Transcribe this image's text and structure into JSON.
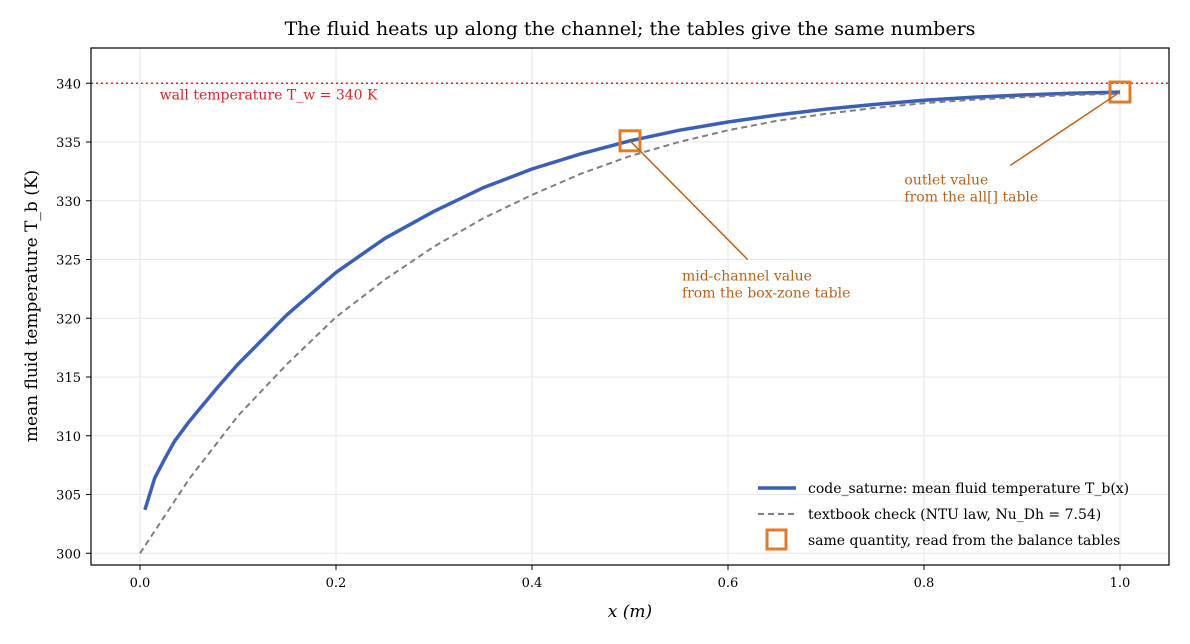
{
  "chart_data": {
    "type": "line",
    "title": "The fluid heats up along the channel; the tables give the same numbers",
    "xlabel": "x (m)",
    "ylabel": "mean fluid temperature T_b (K)",
    "xlim": [
      -0.05,
      1.05
    ],
    "ylim": [
      299,
      343
    ],
    "grid": true,
    "legend_position": "lower-right",
    "x_ticks": [
      0.0,
      0.2,
      0.4,
      0.6,
      0.8,
      1.0
    ],
    "x_tick_labels": [
      "0.0",
      "0.2",
      "0.4",
      "0.6",
      "0.8",
      "1.0"
    ],
    "y_ticks": [
      300,
      305,
      310,
      315,
      320,
      325,
      330,
      335,
      340
    ],
    "y_tick_labels": [
      "300",
      "305",
      "310",
      "315",
      "320",
      "325",
      "330",
      "335",
      "340"
    ],
    "series": [
      {
        "name": "code_saturne: mean fluid temperature T_b(x)",
        "style": "solid",
        "color": "#3a5fb5",
        "x": [
          0.005,
          0.015,
          0.025,
          0.035,
          0.05,
          0.06,
          0.08,
          0.1,
          0.15,
          0.2,
          0.25,
          0.3,
          0.35,
          0.4,
          0.45,
          0.5,
          0.55,
          0.6,
          0.65,
          0.7,
          0.75,
          0.8,
          0.85,
          0.9,
          0.95,
          1.0
        ],
        "y": [
          303.7,
          306.4,
          308.0,
          309.5,
          311.2,
          312.2,
          314.2,
          316.1,
          320.3,
          323.9,
          326.8,
          329.1,
          331.1,
          332.7,
          334.0,
          335.1,
          336.0,
          336.7,
          337.3,
          337.8,
          338.2,
          338.55,
          338.8,
          339.0,
          339.15,
          339.25
        ]
      },
      {
        "name": "textbook check (NTU law, Nu_Dh = 7.54)",
        "style": "dashed",
        "color": "#7f7f7f",
        "x": [
          0.0,
          0.05,
          0.1,
          0.15,
          0.2,
          0.25,
          0.3,
          0.35,
          0.4,
          0.45,
          0.5,
          0.55,
          0.6,
          0.65,
          0.7,
          0.75,
          0.8,
          0.85,
          0.9,
          0.95,
          1.0
        ],
        "y": [
          300.0,
          306.3,
          311.7,
          316.1,
          320.1,
          323.3,
          326.1,
          328.5,
          330.5,
          332.3,
          333.8,
          335.0,
          336.0,
          336.8,
          337.4,
          337.9,
          338.3,
          338.6,
          338.8,
          339.0,
          339.1
        ]
      },
      {
        "name": "same quantity, read from the balance tables",
        "style": "square-markers",
        "color": "#e07b2a",
        "x": [
          0.5,
          1.0
        ],
        "y": [
          335.1,
          339.25
        ]
      }
    ],
    "reference_line": {
      "y": 340,
      "color": "#d62728",
      "style": "dotted",
      "label": "wall temperature T_w = 340 K"
    },
    "annotations": [
      {
        "line1": "mid-channel value",
        "line2": "from the box-zone table",
        "target_x": 0.5,
        "target_y": 335.1,
        "color": "#b8621b"
      },
      {
        "line1": "outlet value",
        "line2": "from the all[] table",
        "target_x": 1.0,
        "target_y": 339.25,
        "color": "#b8621b"
      }
    ]
  }
}
